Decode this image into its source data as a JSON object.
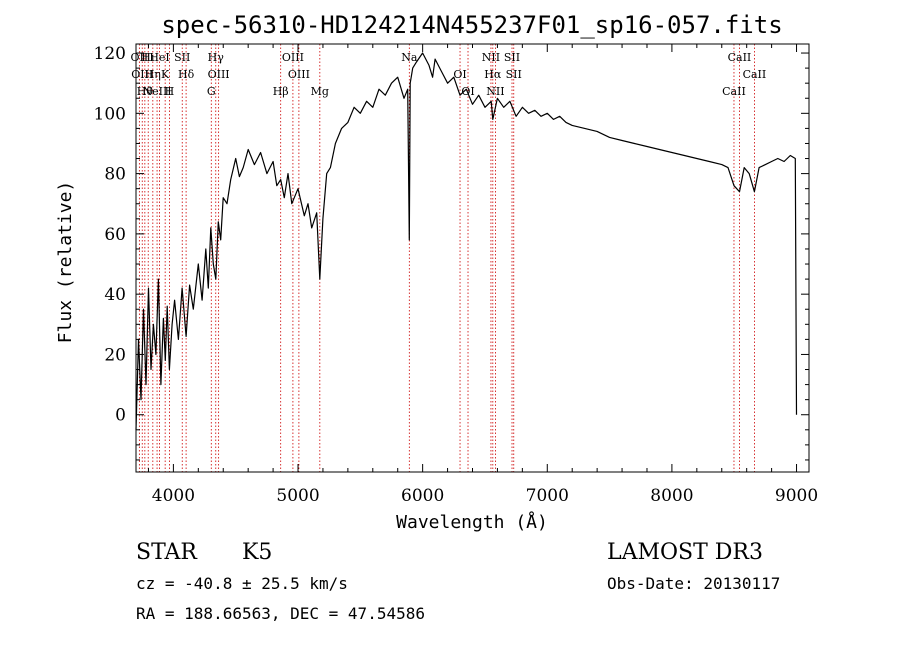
{
  "chart_data": {
    "type": "line",
    "title": "spec-56310-HD124214N455237F01_sp16-057.fits",
    "xlabel": "Wavelength (Å)",
    "ylabel": "Flux (relative)",
    "xlim": [
      3700,
      9100
    ],
    "ylim": [
      -19,
      123
    ],
    "x_ticks": [
      4000,
      5000,
      6000,
      7000,
      8000,
      9000
    ],
    "y_ticks": [
      0,
      20,
      40,
      60,
      80,
      100,
      120
    ],
    "series": [
      {
        "name": "flux",
        "x": [
          3700,
          3720,
          3740,
          3760,
          3780,
          3800,
          3820,
          3840,
          3860,
          3880,
          3900,
          3920,
          3935,
          3950,
          3968,
          3990,
          4010,
          4040,
          4070,
          4102,
          4130,
          4160,
          4200,
          4230,
          4260,
          4280,
          4300,
          4320,
          4340,
          4360,
          4380,
          4400,
          4430,
          4460,
          4500,
          4530,
          4560,
          4600,
          4650,
          4700,
          4750,
          4800,
          4830,
          4861,
          4890,
          4920,
          4950,
          5000,
          5050,
          5080,
          5110,
          5150,
          5175,
          5200,
          5230,
          5260,
          5300,
          5350,
          5400,
          5450,
          5500,
          5550,
          5600,
          5650,
          5700,
          5750,
          5800,
          5850,
          5880,
          5893,
          5900,
          5920,
          5950,
          6000,
          6050,
          6080,
          6100,
          6150,
          6200,
          6250,
          6300,
          6350,
          6400,
          6450,
          6500,
          6550,
          6563,
          6600,
          6650,
          6700,
          6750,
          6800,
          6850,
          6900,
          6950,
          7000,
          7050,
          7100,
          7150,
          7200,
          7300,
          7400,
          7500,
          7600,
          7700,
          7800,
          7900,
          8000,
          8100,
          8200,
          8300,
          8400,
          8450,
          8498,
          8542,
          8580,
          8620,
          8662,
          8700,
          8750,
          8800,
          8850,
          8900,
          8950,
          8990,
          9000
        ],
        "values": [
          -5,
          25,
          5,
          35,
          10,
          42,
          15,
          30,
          20,
          45,
          10,
          32,
          18,
          36,
          15,
          30,
          38,
          25,
          42,
          26,
          43,
          35,
          50,
          38,
          55,
          42,
          62,
          50,
          45,
          64,
          58,
          72,
          70,
          78,
          85,
          79,
          82,
          88,
          83,
          87,
          80,
          84,
          76,
          78,
          72,
          80,
          70,
          75,
          66,
          70,
          62,
          67,
          45,
          65,
          80,
          82,
          90,
          95,
          97,
          102,
          100,
          104,
          102,
          108,
          106,
          110,
          112,
          105,
          108,
          58,
          110,
          115,
          117,
          120,
          116,
          112,
          118,
          114,
          110,
          112,
          106,
          108,
          103,
          106,
          102,
          104,
          98,
          105,
          102,
          104,
          99,
          102,
          100,
          101,
          99,
          100,
          98,
          99,
          97,
          96,
          95,
          94,
          92,
          91,
          90,
          89,
          88,
          87,
          86,
          85,
          84,
          83,
          82,
          76,
          74,
          82,
          80,
          74,
          82,
          83,
          84,
          85,
          84,
          86,
          85,
          0
        ]
      }
    ],
    "line_markers": [
      {
        "wavelength": 3727,
        "labels": [
          "OII"
        ]
      },
      {
        "wavelength": 3750,
        "labels": [
          "OIII"
        ]
      },
      {
        "wavelength": 3771,
        "labels": [
          "Hθ"
        ]
      },
      {
        "wavelength": 3798,
        "labels": [
          "Hι"
        ]
      },
      {
        "wavelength": 3835,
        "labels": [
          "Hη"
        ]
      },
      {
        "wavelength": 3869,
        "labels": [
          "NeIII"
        ]
      },
      {
        "wavelength": 3889,
        "labels": [
          "HeI"
        ]
      },
      {
        "wavelength": 3934,
        "labels": [
          "K"
        ]
      },
      {
        "wavelength": 3968,
        "labels": [
          "H"
        ]
      },
      {
        "wavelength": 4071,
        "labels": [
          "SII"
        ]
      },
      {
        "wavelength": 4102,
        "labels": [
          "Hδ"
        ]
      },
      {
        "wavelength": 4304,
        "labels": [
          "G"
        ]
      },
      {
        "wavelength": 4340,
        "labels": [
          "Hγ"
        ]
      },
      {
        "wavelength": 4363,
        "labels": [
          "OIII"
        ]
      },
      {
        "wavelength": 4861,
        "labels": [
          "Hβ"
        ]
      },
      {
        "wavelength": 4959,
        "labels": [
          "OIII"
        ]
      },
      {
        "wavelength": 5007,
        "labels": [
          "OIII"
        ]
      },
      {
        "wavelength": 5175,
        "labels": [
          "Mg"
        ]
      },
      {
        "wavelength": 5893,
        "labels": [
          "Na"
        ]
      },
      {
        "wavelength": 6300,
        "labels": [
          "OI"
        ]
      },
      {
        "wavelength": 6364,
        "labels": [
          "OI"
        ]
      },
      {
        "wavelength": 6548,
        "labels": [
          "NII"
        ]
      },
      {
        "wavelength": 6563,
        "labels": [
          "Hα"
        ]
      },
      {
        "wavelength": 6584,
        "labels": [
          "NII"
        ]
      },
      {
        "wavelength": 6717,
        "labels": [
          "SII"
        ]
      },
      {
        "wavelength": 6731,
        "labels": [
          "SII"
        ]
      },
      {
        "wavelength": 8498,
        "labels": [
          "CaII"
        ]
      },
      {
        "wavelength": 8542,
        "labels": [
          "CaII"
        ]
      },
      {
        "wavelength": 8662,
        "labels": [
          "CaII"
        ]
      }
    ],
    "line_color": "#cc0000",
    "grid": false
  },
  "info": {
    "object_class": "STAR",
    "subclass": "K5",
    "survey": "LAMOST DR3",
    "redshift_text": "cz = -40.8 ± 25.5 km/s",
    "obs_date": "Obs-Date: 20130117",
    "coords": "RA = 188.66563, DEC =  47.54586"
  }
}
